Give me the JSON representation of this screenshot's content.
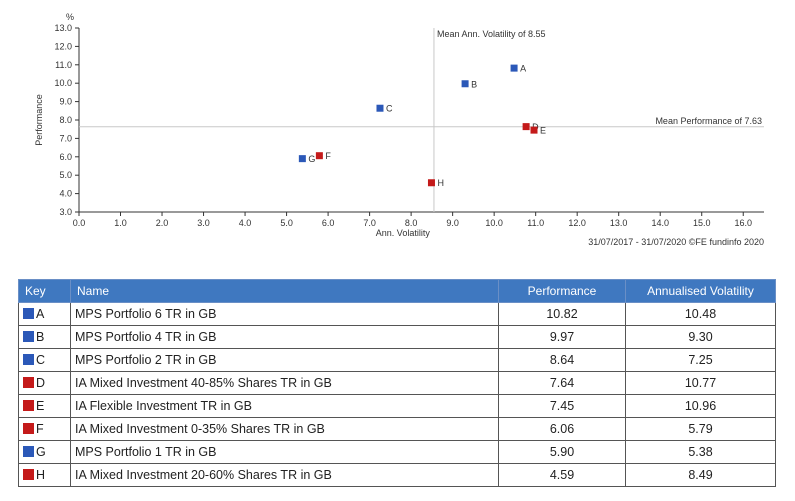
{
  "chart_data": {
    "type": "scatter",
    "xlabel": "Ann. Volatility",
    "ylabel": "Performance",
    "yunit": "%",
    "xlim": [
      0,
      16.5
    ],
    "ylim": [
      3.0,
      13.0
    ],
    "xticks": [
      "0.0",
      "1.0",
      "2.0",
      "3.0",
      "4.0",
      "5.0",
      "6.0",
      "7.0",
      "8.0",
      "9.0",
      "10.0",
      "11.0",
      "12.0",
      "13.0",
      "14.0",
      "15.0",
      "16.0"
    ],
    "yticks": [
      "3.0",
      "4.0",
      "5.0",
      "6.0",
      "7.0",
      "8.0",
      "9.0",
      "10.0",
      "11.0",
      "12.0",
      "13.0"
    ],
    "mean_volatility": 8.55,
    "mean_volatility_label": "Mean Ann. Volatility of 8.55",
    "mean_performance": 7.63,
    "mean_performance_label": "Mean Performance of 7.63",
    "footnote": "31/07/2017 - 31/07/2020 ©FE fundinfo 2020",
    "points": [
      {
        "key": "A",
        "x": 10.48,
        "y": 10.82,
        "color": "#2b58b8"
      },
      {
        "key": "B",
        "x": 9.3,
        "y": 9.97,
        "color": "#2b58b8"
      },
      {
        "key": "C",
        "x": 7.25,
        "y": 8.64,
        "color": "#2b58b8"
      },
      {
        "key": "D",
        "x": 10.77,
        "y": 7.64,
        "color": "#c41a1a"
      },
      {
        "key": "E",
        "x": 10.96,
        "y": 7.45,
        "color": "#c41a1a"
      },
      {
        "key": "F",
        "x": 5.79,
        "y": 6.06,
        "color": "#c41a1a"
      },
      {
        "key": "G",
        "x": 5.38,
        "y": 5.9,
        "color": "#2b58b8"
      },
      {
        "key": "H",
        "x": 8.49,
        "y": 4.59,
        "color": "#c41a1a"
      }
    ]
  },
  "table": {
    "headers": {
      "key": "Key",
      "name": "Name",
      "performance": "Performance",
      "volatility": "Annualised Volatility"
    },
    "rows": [
      {
        "key": "A",
        "name": "MPS Portfolio 6 TR in GB",
        "performance": "10.82",
        "volatility": "10.48"
      },
      {
        "key": "B",
        "name": "MPS Portfolio 4 TR in GB",
        "performance": "9.97",
        "volatility": "9.30"
      },
      {
        "key": "C",
        "name": "MPS Portfolio 2 TR in GB",
        "performance": "8.64",
        "volatility": "7.25"
      },
      {
        "key": "D",
        "name": "IA Mixed Investment 40-85% Shares TR in GB",
        "performance": "7.64",
        "volatility": "10.77"
      },
      {
        "key": "E",
        "name": "IA Flexible Investment TR in GB",
        "performance": "7.45",
        "volatility": "10.96"
      },
      {
        "key": "F",
        "name": "IA Mixed Investment 0-35% Shares TR in GB",
        "performance": "6.06",
        "volatility": "5.79"
      },
      {
        "key": "G",
        "name": "MPS Portfolio 1 TR in GB",
        "performance": "5.90",
        "volatility": "5.38"
      },
      {
        "key": "H",
        "name": "IA Mixed Investment 20-60% Shares TR in GB",
        "performance": "4.59",
        "volatility": "8.49"
      }
    ]
  }
}
